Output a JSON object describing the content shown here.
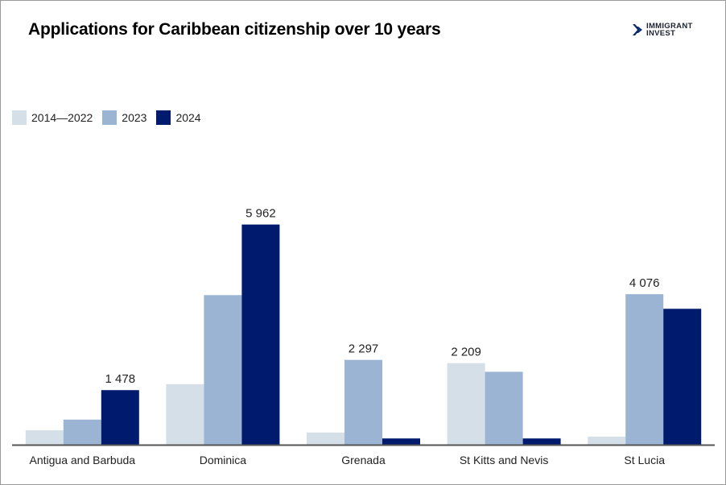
{
  "chart_data": {
    "type": "bar",
    "title": "Applications for Caribbean citizenship over 10 years",
    "categories": [
      "Antigua and Barbuda",
      "Dominica",
      "Grenada",
      "St Kitts and Nevis",
      "St Lucia"
    ],
    "series": [
      {
        "name": "2014—2022",
        "color": "#d5dfe7",
        "values": [
          390,
          1640,
          330,
          2209,
          220
        ]
      },
      {
        "name": "2023",
        "color": "#9bb4d3",
        "values": [
          680,
          4050,
          2297,
          1975,
          4076
        ]
      },
      {
        "name": "2024",
        "color": "#001a6e",
        "values": [
          1478,
          5962,
          170,
          170,
          3680
        ]
      }
    ],
    "data_labels": [
      {
        "category": "Antigua and Barbuda",
        "series": "2024",
        "text": "1 478"
      },
      {
        "category": "Dominica",
        "series": "2024",
        "text": "5 962"
      },
      {
        "category": "Grenada",
        "series": "2023",
        "text": "2 297"
      },
      {
        "category": "St Kitts and Nevis",
        "series": "2014—2022",
        "text": "2 209"
      },
      {
        "category": "St Lucia",
        "series": "2023",
        "text": "4 076"
      }
    ],
    "ylim": [
      0,
      6500
    ],
    "xlabel": "",
    "ylabel": "",
    "grid": false,
    "legend_position": "top-left"
  },
  "logo": {
    "line1": "IMMIGRANT",
    "line2": "INVEST"
  }
}
